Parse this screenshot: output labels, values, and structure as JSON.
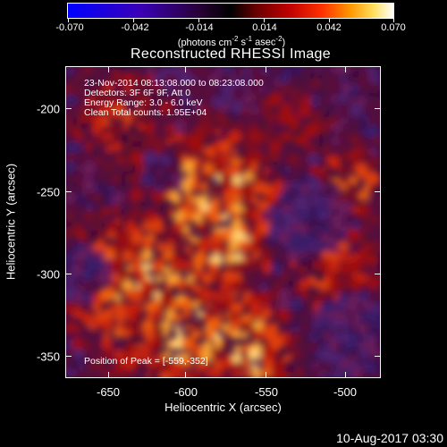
{
  "colorbar": {
    "tick_labels": [
      "-0.070",
      "-0.042",
      "-0.014",
      "0.014",
      "0.042",
      "0.070"
    ],
    "units_main": "(photons cm",
    "units_exp1": "-2",
    "units_mid": " s",
    "units_exp2": "-1",
    "units_mid2": " asec",
    "units_exp3": "-2",
    "units_end": ")",
    "range": [
      -0.07,
      0.07
    ]
  },
  "title": "Reconstructed RHESSI Image",
  "info": {
    "line1": "23-Nov-2014 08:13:08.000 to 08:23:08.000",
    "line2": "Detectors: 3F 6F 9F, Att 0",
    "line3": "Energy Range: 3.0 - 6.0 keV",
    "line4": "Clean    Total counts: 1.95E+04",
    "peak": "Position of Peak = [-559,-352]"
  },
  "x_axis": {
    "title": "Heliocentric X (arcsec)",
    "ticks": [
      "-650",
      "-600",
      "-550",
      "-500"
    ],
    "range": [
      -673,
      -477
    ]
  },
  "y_axis": {
    "title": "Heliocentric Y (arcsec)",
    "ticks": [
      "-200",
      "-250",
      "-300",
      "-350"
    ],
    "range": [
      -366,
      -173
    ]
  },
  "timestamp": "10-Aug-2017 03:30",
  "colors": {
    "background": "#000000",
    "foreground": "#ffffff",
    "low": "#0000ff",
    "mid": "#000000",
    "high_dark": "#7f0000",
    "high_mid": "#ff4500",
    "high": "#ffa500",
    "max": "#ffffff"
  }
}
